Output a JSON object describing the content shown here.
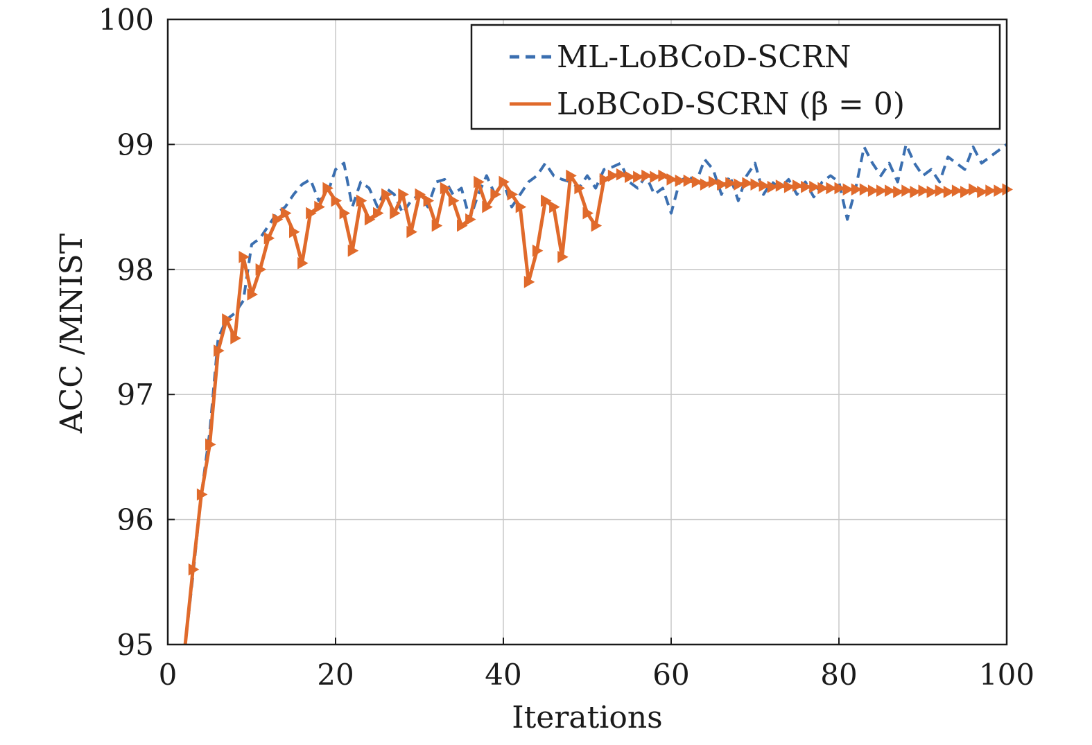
{
  "chart_data": {
    "type": "line",
    "title": "",
    "xlabel": "Iterations",
    "ylabel": "ACC /MNIST",
    "xlim": [
      0,
      100
    ],
    "ylim": [
      95,
      100
    ],
    "xticks": [
      0,
      20,
      40,
      60,
      80,
      100
    ],
    "yticks": [
      95,
      96,
      97,
      98,
      99,
      100
    ],
    "grid": true,
    "legend_position": "top-right",
    "x": [
      2,
      3,
      4,
      5,
      6,
      7,
      8,
      9,
      10,
      11,
      12,
      13,
      14,
      15,
      16,
      17,
      18,
      19,
      20,
      21,
      22,
      23,
      24,
      25,
      26,
      27,
      28,
      29,
      30,
      31,
      32,
      33,
      34,
      35,
      36,
      37,
      38,
      39,
      40,
      41,
      42,
      43,
      44,
      45,
      46,
      47,
      48,
      49,
      50,
      51,
      52,
      53,
      54,
      55,
      56,
      57,
      58,
      59,
      60,
      61,
      62,
      63,
      64,
      65,
      66,
      67,
      68,
      69,
      70,
      71,
      72,
      73,
      74,
      75,
      76,
      77,
      78,
      79,
      80,
      81,
      82,
      83,
      84,
      85,
      86,
      87,
      88,
      89,
      90,
      91,
      92,
      93,
      94,
      95,
      96,
      97,
      98,
      99,
      100
    ],
    "series": [
      {
        "name": "ML-LoBCoD-SCRN",
        "color": "#3b6fb0",
        "dash": "dashed",
        "marker": "none",
        "values": [
          94.95,
          95.55,
          96.2,
          96.7,
          97.45,
          97.6,
          97.65,
          97.75,
          98.2,
          98.25,
          98.35,
          98.45,
          98.5,
          98.6,
          98.68,
          98.72,
          98.55,
          98.6,
          98.8,
          98.85,
          98.5,
          98.7,
          98.65,
          98.5,
          98.65,
          98.6,
          98.45,
          98.55,
          98.6,
          98.5,
          98.7,
          98.72,
          98.6,
          98.65,
          98.4,
          98.6,
          98.75,
          98.6,
          98.7,
          98.5,
          98.6,
          98.7,
          98.75,
          98.85,
          98.75,
          98.72,
          98.7,
          98.65,
          98.75,
          98.65,
          98.8,
          98.82,
          98.85,
          98.7,
          98.65,
          98.75,
          98.6,
          98.65,
          98.45,
          98.7,
          98.75,
          98.7,
          98.88,
          98.8,
          98.6,
          98.75,
          98.55,
          98.75,
          98.85,
          98.6,
          98.7,
          98.65,
          98.72,
          98.6,
          98.7,
          98.58,
          98.7,
          98.75,
          98.7,
          98.4,
          98.65,
          98.98,
          98.85,
          98.75,
          98.85,
          98.7,
          99.0,
          98.85,
          98.75,
          98.8,
          98.7,
          98.9,
          98.85,
          98.8,
          98.98,
          98.85,
          98.9,
          98.95,
          99.0
        ]
      },
      {
        "name": "LoBCoD-SCRN (β = 0)",
        "color": "#e06a2b",
        "dash": "solid",
        "marker": "triangle-right",
        "values": [
          94.95,
          95.6,
          96.2,
          96.6,
          97.35,
          97.6,
          97.45,
          98.1,
          97.8,
          98.0,
          98.25,
          98.4,
          98.45,
          98.3,
          98.05,
          98.45,
          98.5,
          98.65,
          98.55,
          98.45,
          98.15,
          98.55,
          98.4,
          98.45,
          98.6,
          98.45,
          98.6,
          98.3,
          98.6,
          98.55,
          98.35,
          98.65,
          98.55,
          98.35,
          98.4,
          98.7,
          98.5,
          98.6,
          98.7,
          98.6,
          98.5,
          97.9,
          98.15,
          98.55,
          98.5,
          98.1,
          98.75,
          98.65,
          98.45,
          98.35,
          98.72,
          98.75,
          98.76,
          98.74,
          98.74,
          98.75,
          98.74,
          98.75,
          98.72,
          98.71,
          98.71,
          98.7,
          98.68,
          98.7,
          98.68,
          98.69,
          98.68,
          98.69,
          98.68,
          98.67,
          98.66,
          98.67,
          98.66,
          98.67,
          98.66,
          98.66,
          98.65,
          98.65,
          98.65,
          98.64,
          98.64,
          98.64,
          98.63,
          98.63,
          98.63,
          98.62,
          98.63,
          98.62,
          98.63,
          98.62,
          98.63,
          98.62,
          98.63,
          98.62,
          98.64,
          98.62,
          98.63,
          98.63,
          98.64
        ]
      }
    ],
    "legend_entries": [
      "ML-LoBCoD-SCRN",
      "LoBCoD-SCRN (β = 0)"
    ]
  }
}
